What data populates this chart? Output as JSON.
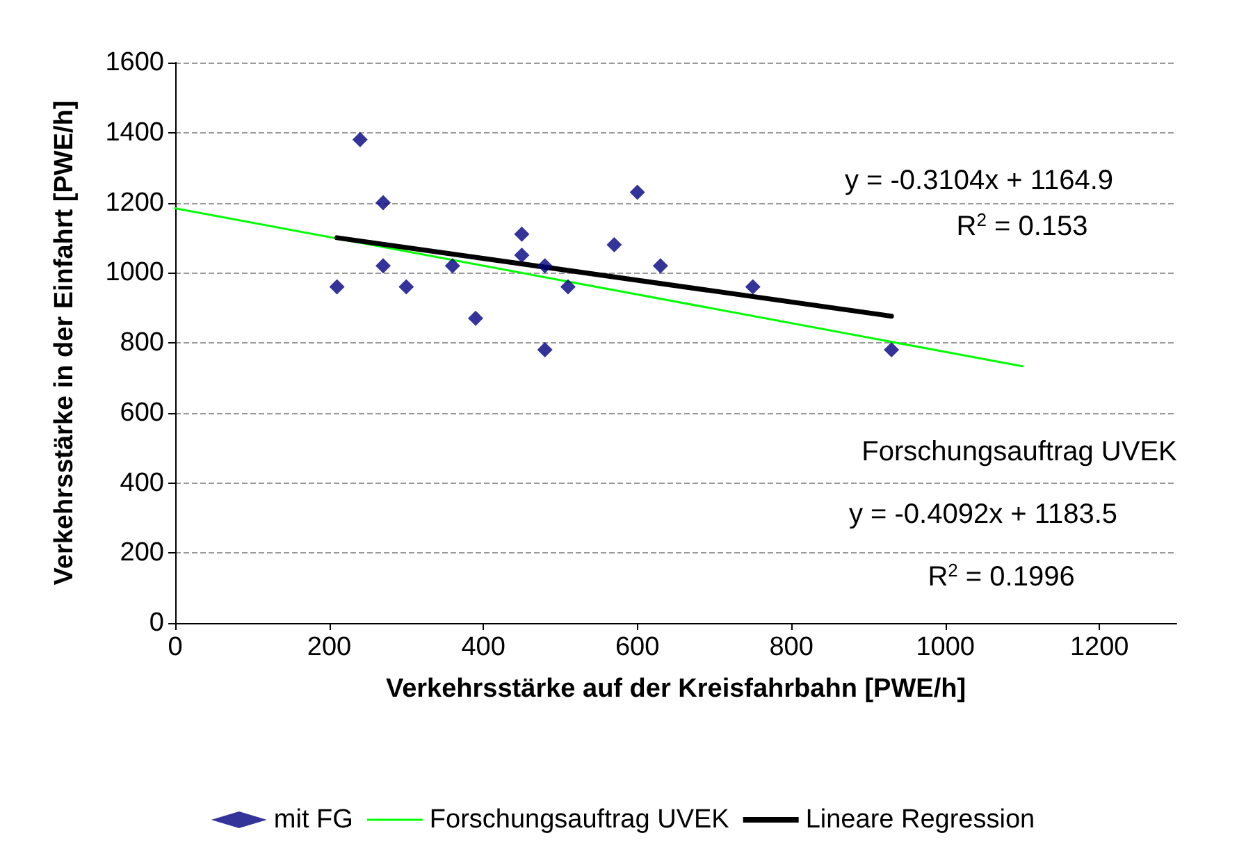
{
  "chart_data": {
    "type": "scatter",
    "xlabel": "Verkehrsstärke auf der Kreisfahrbahn [PWE/h]",
    "ylabel": "Verkehrsstärke in der Einfahrt [PWE/h]",
    "xlim": [
      0,
      1300
    ],
    "xticks": [
      0,
      200,
      400,
      600,
      800,
      1000,
      1200
    ],
    "ylim": [
      0,
      1600
    ],
    "yticks": [
      0,
      200,
      400,
      600,
      800,
      1000,
      1200,
      1400,
      1600
    ],
    "grid": "y",
    "legend": "bottom",
    "marker": "diamond",
    "series": [
      {
        "name": "mit FG",
        "color": "#000080",
        "x": [
          210,
          240,
          270,
          270,
          300,
          360,
          390,
          450,
          450,
          480,
          480,
          510,
          570,
          600,
          630,
          750,
          930
        ],
        "values": [
          960,
          1380,
          1200,
          1020,
          960,
          1020,
          870,
          1110,
          1050,
          1020,
          780,
          960,
          1080,
          1230,
          1020,
          960,
          780
        ]
      },
      {
        "name": "Forschungsauftrag UVEK",
        "type": "line",
        "marker": "none",
        "color": "#00ff00",
        "x": [
          0,
          1100
        ],
        "values": [
          1184,
          733
        ]
      },
      {
        "name": "Lineare Regression",
        "type": "line",
        "marker": "none",
        "color": "#000000",
        "x": [
          210,
          930
        ],
        "values": [
          1100,
          876
        ]
      }
    ],
    "annotations": [
      "y = -0.3104x + 1164.9",
      "R$^{2}$ = 0.153",
      "Forschungsauftrag UVEK",
      "y = -0.4092x + 1183.5",
      "R$^{2}$ = 0.1996"
    ]
  }
}
